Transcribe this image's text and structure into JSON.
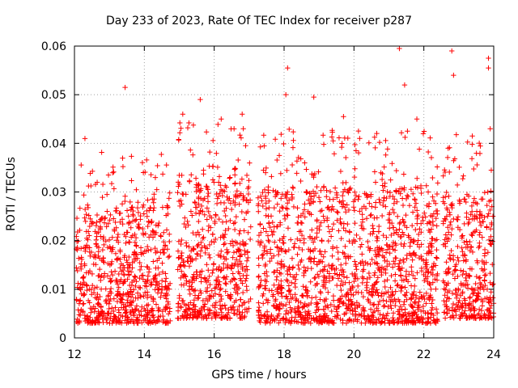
{
  "chart_data": {
    "type": "scatter",
    "title": "Day 233 of 2023, Rate Of TEC Index for receiver p287",
    "xlabel": "GPS time / hours",
    "ylabel": "ROTI / TECUs",
    "xlim": [
      12,
      24
    ],
    "ylim": [
      0,
      0.06
    ],
    "xticks": [
      "12",
      "14",
      "16",
      "18",
      "20",
      "22",
      "24"
    ],
    "yticks": [
      "0",
      "0.01",
      "0.02",
      "0.03",
      "0.04",
      "0.05",
      "0.06"
    ],
    "grid": true,
    "marker": "+",
    "color": "#ff0000",
    "segments": [
      {
        "x_start": 12.05,
        "x_end": 14.75,
        "y_min": 0.003,
        "y_max": 0.027
      },
      {
        "x_start": 14.95,
        "x_end": 17.05,
        "y_min": 0.004,
        "y_max": 0.033
      },
      {
        "x_start": 17.25,
        "x_end": 22.4,
        "y_min": 0.003,
        "y_max": 0.031
      },
      {
        "x_start": 22.55,
        "x_end": 24.0,
        "y_min": 0.004,
        "y_max": 0.03
      }
    ],
    "notable_points": [
      {
        "x": 13.45,
        "y": 0.0515
      },
      {
        "x": 15.6,
        "y": 0.049
      },
      {
        "x": 16.8,
        "y": 0.046
      },
      {
        "x": 18.1,
        "y": 0.0555
      },
      {
        "x": 18.85,
        "y": 0.0495
      },
      {
        "x": 21.3,
        "y": 0.0595
      },
      {
        "x": 21.45,
        "y": 0.052
      },
      {
        "x": 22.8,
        "y": 0.059
      },
      {
        "x": 22.85,
        "y": 0.054
      },
      {
        "x": 23.85,
        "y": 0.0575
      },
      {
        "x": 23.85,
        "y": 0.0555
      },
      {
        "x": 12.3,
        "y": 0.041
      },
      {
        "x": 15.1,
        "y": 0.046
      },
      {
        "x": 16.2,
        "y": 0.045
      },
      {
        "x": 18.05,
        "y": 0.05
      },
      {
        "x": 19.7,
        "y": 0.0455
      },
      {
        "x": 21.8,
        "y": 0.045
      },
      {
        "x": 23.9,
        "y": 0.043
      }
    ]
  }
}
